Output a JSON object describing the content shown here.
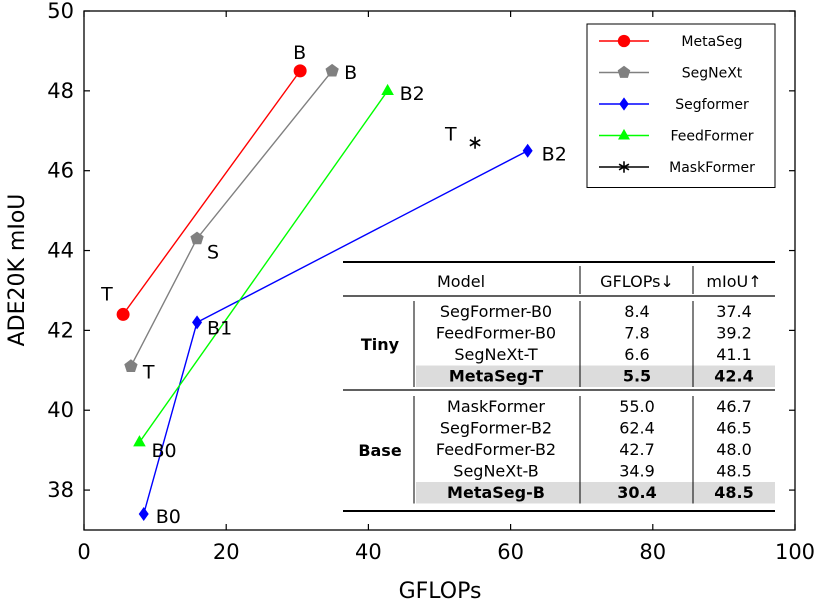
{
  "chart_data": {
    "type": "line",
    "xlabel": "GFLOPs",
    "ylabel": "ADE20K mIoU",
    "xlim": [
      0,
      100
    ],
    "ylim": [
      37,
      50
    ],
    "xticks": [
      0,
      20,
      40,
      60,
      80,
      100
    ],
    "yticks": [
      38,
      40,
      42,
      44,
      46,
      48,
      50
    ],
    "grid": false,
    "legend_position": "top-right",
    "series": [
      {
        "name": "MetaSeg",
        "color": "#ff0000",
        "marker": "circle",
        "points": [
          {
            "x": 5.5,
            "y": 42.4,
            "label": "T"
          },
          {
            "x": 30.4,
            "y": 48.5,
            "label": "B"
          }
        ]
      },
      {
        "name": "SegNeXt",
        "color": "#808080",
        "marker": "pentagon",
        "points": [
          {
            "x": 6.6,
            "y": 41.1,
            "label": "T"
          },
          {
            "x": 15.9,
            "y": 44.3,
            "label": "S"
          },
          {
            "x": 34.9,
            "y": 48.5,
            "label": "B"
          }
        ]
      },
      {
        "name": "Segformer",
        "color": "#0000ff",
        "marker": "diamond",
        "points": [
          {
            "x": 8.4,
            "y": 37.4,
            "label": "B0"
          },
          {
            "x": 15.9,
            "y": 42.2,
            "label": "B1"
          },
          {
            "x": 62.4,
            "y": 46.5,
            "label": "B2"
          }
        ]
      },
      {
        "name": "FeedFormer",
        "color": "#00ff00",
        "marker": "triangle",
        "points": [
          {
            "x": 7.8,
            "y": 39.2,
            "label": "B0"
          },
          {
            "x": 42.7,
            "y": 48.0,
            "label": "B2"
          }
        ]
      },
      {
        "name": "MaskFormer",
        "color": "#000000",
        "marker": "asterisk",
        "points": [
          {
            "x": 55.0,
            "y": 46.7,
            "label": "T"
          }
        ]
      }
    ],
    "table": {
      "headers": [
        "Model",
        "GFLOPs↓",
        "mIoU↑"
      ],
      "groups": [
        {
          "name": "Tiny",
          "rows": [
            {
              "model": "SegFormer-B0",
              "gflops": "8.4",
              "miou": "37.4",
              "highlight": false
            },
            {
              "model": "FeedFormer-B0",
              "gflops": "7.8",
              "miou": "39.2",
              "highlight": false
            },
            {
              "model": "SegNeXt-T",
              "gflops": "6.6",
              "miou": "41.1",
              "highlight": false
            },
            {
              "model": "MetaSeg-T",
              "gflops": "5.5",
              "miou": "42.4",
              "highlight": true
            }
          ]
        },
        {
          "name": "Base",
          "rows": [
            {
              "model": "MaskFormer",
              "gflops": "55.0",
              "miou": "46.7",
              "highlight": false
            },
            {
              "model": "SegFormer-B2",
              "gflops": "62.4",
              "miou": "46.5",
              "highlight": false
            },
            {
              "model": "FeedFormer-B2",
              "gflops": "42.7",
              "miou": "48.0",
              "highlight": false
            },
            {
              "model": "SegNeXt-B",
              "gflops": "34.9",
              "miou": "48.5",
              "highlight": false
            },
            {
              "model": "MetaSeg-B",
              "gflops": "30.4",
              "miou": "48.5",
              "highlight": true
            }
          ]
        }
      ]
    }
  }
}
